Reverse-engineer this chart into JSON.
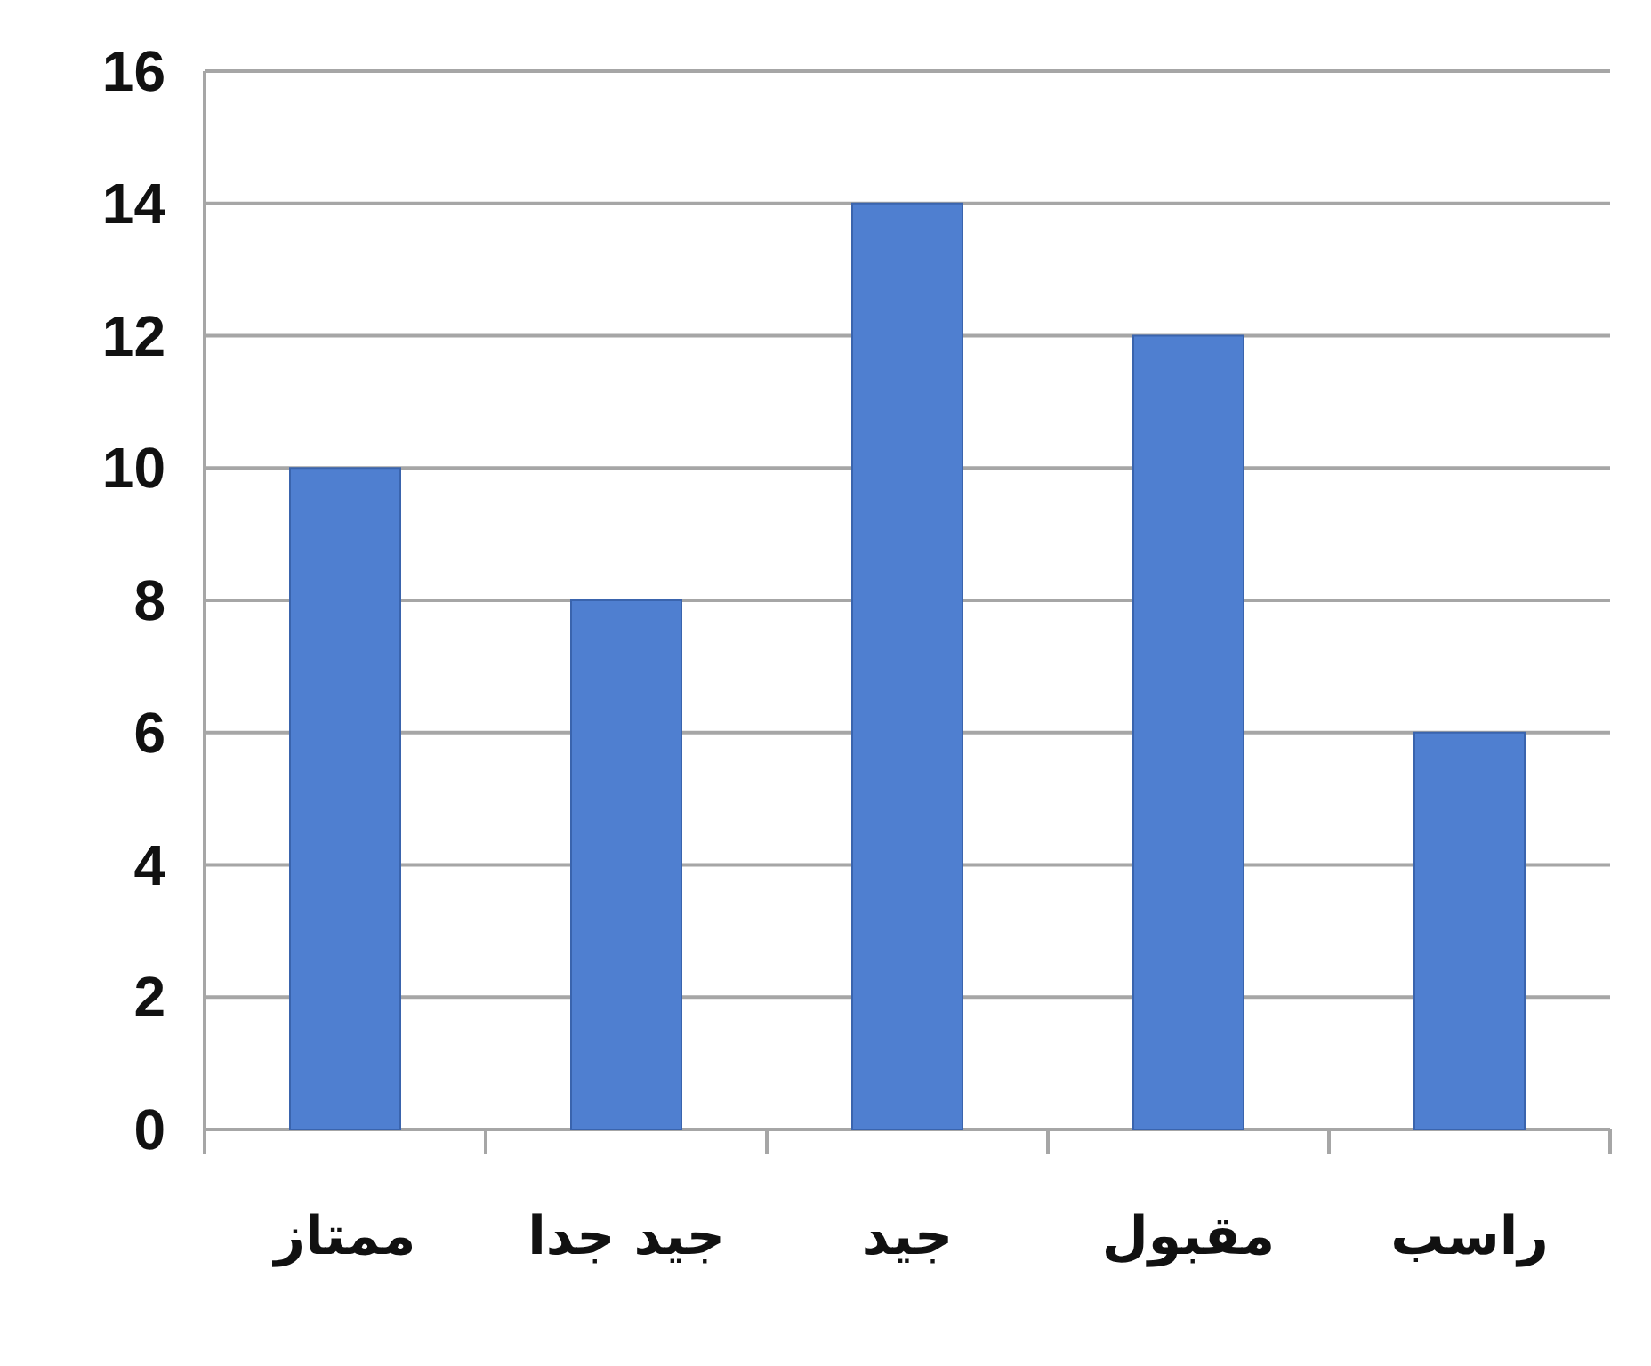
{
  "chart_data": {
    "type": "bar",
    "categories": [
      "ممتاز",
      "جيد جدا",
      "جيد",
      "مقبول",
      "راسب"
    ],
    "values": [
      10,
      8,
      14,
      12,
      6
    ],
    "color": "#4f7fd0",
    "ylim": [
      0,
      16
    ],
    "yticks": [
      0,
      2,
      4,
      6,
      8,
      10,
      12,
      14,
      16
    ],
    "grid": "y"
  }
}
